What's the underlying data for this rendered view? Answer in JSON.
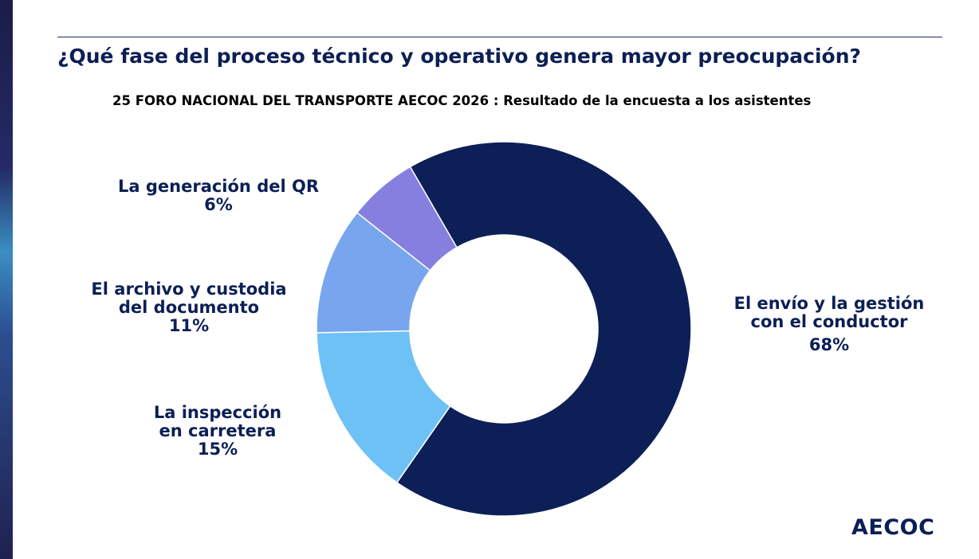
{
  "title": "¿Qué fase del proceso técnico y operativo genera mayor preocupación?",
  "subtitle": "25 FORO NACIONAL DEL TRANSPORTE AECOC 2026 :  Resultado de la encuesta a los asistentes",
  "logo": "AECOC",
  "chart_data": {
    "type": "pie",
    "title": "¿Qué fase del proceso técnico y operativo genera mayor preocupación?",
    "subtitle": "25 FORO NACIONAL DEL TRANSPORTE AECOC 2026 :  Resultado de la encuesta a los asistentes",
    "legend": "none",
    "slices": [
      {
        "label_lines": [
          "El envío y la gestión",
          "con el conductor"
        ],
        "value_label": "68%",
        "value": 68,
        "color": "#0c1f57"
      },
      {
        "label_lines": [
          "La inspección",
          "en carretera"
        ],
        "value_label": "15%",
        "value": 15,
        "color": "#6ec1f5"
      },
      {
        "label_lines": [
          "El archivo y custodia",
          "del documento"
        ],
        "value_label": "11%",
        "value": 11,
        "color": "#78a6ee"
      },
      {
        "label_lines": [
          "La generación del QR"
        ],
        "value_label": "6%",
        "value": 6,
        "color": "#8580e0"
      }
    ]
  }
}
